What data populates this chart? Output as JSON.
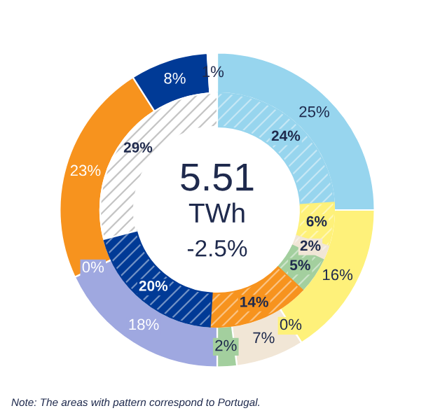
{
  "chart_data": {
    "type": "donut",
    "legend": false,
    "series": [
      {
        "values": [
          25,
          16,
          0,
          7,
          2,
          18,
          0,
          23,
          8,
          1
        ],
        "value_labels": [
          "25%",
          "16%",
          "0%",
          "7%",
          "2%",
          "18%",
          "0%",
          "23%",
          "8%",
          "1%"
        ],
        "colors": [
          "#97d5ee",
          "#fef17a",
          "#f5c400",
          "#f1e6d6",
          "#a3cf9e",
          "#9fa8e0",
          "#c8c8c8",
          "#f7931e",
          "#003a96",
          "#ffffff"
        ]
      },
      {
        "values": [
          24,
          6,
          2,
          5,
          14,
          20,
          29
        ],
        "value_labels": [
          "24%",
          "6%",
          "2%",
          "5%",
          "14%",
          "20%",
          "29%"
        ],
        "colors": [
          "#97d5ee",
          "#fef17a",
          "#f1e6d6",
          "#a3cf9e",
          "#f7931e",
          "#003a96",
          "#ffffff"
        ]
      }
    ],
    "annotations": [
      "5.51",
      "TWh",
      "-2.5%",
      "Note: The areas with pattern correspond to Portugal."
    ]
  }
}
